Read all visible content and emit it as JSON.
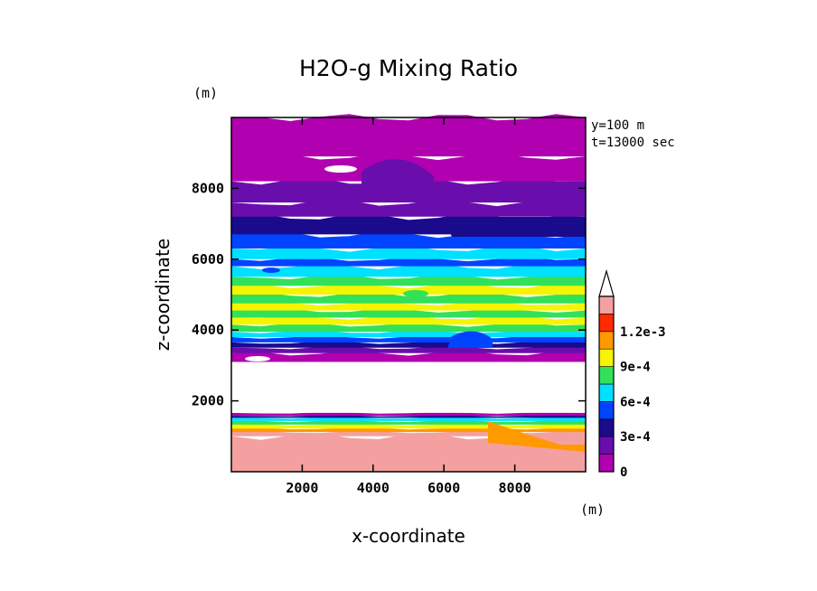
{
  "chart_data": {
    "type": "heatmap",
    "title": "H2O-g Mixing Ratio",
    "xlabel": "x-coordinate",
    "ylabel": "z-coordinate",
    "x_unit": "(m)",
    "y_unit": "(m)",
    "annotation_lines": [
      "y=100 m",
      "t=13000 sec"
    ],
    "xlim": [
      0,
      10000
    ],
    "ylim": [
      0,
      10000
    ],
    "xticks": [
      2000,
      4000,
      6000,
      8000
    ],
    "yticks": [
      2000,
      4000,
      6000,
      8000
    ],
    "xtick_labels": [
      "2000",
      "4000",
      "6000",
      "8000"
    ],
    "ytick_labels": [
      "2000",
      "4000",
      "6000",
      "8000"
    ],
    "colorbar": {
      "levels": [
        0,
        0.00015,
        0.0003,
        0.00045,
        0.0006,
        0.00075,
        0.0009,
        0.00105,
        0.0012
      ],
      "labels": [
        "0",
        "3e-4",
        "6e-4",
        "9e-4",
        "1.2e-3"
      ],
      "label_values": [
        0,
        0.0003,
        0.0006,
        0.0009,
        0.0012
      ],
      "colors": [
        "#b000b0",
        "#6a0dad",
        "#1a0a8c",
        "#0044ff",
        "#00e0ff",
        "#33e05a",
        "#f5f500",
        "#ff9900",
        "#ff2a00",
        "#f4a0a0"
      ],
      "extend": "max"
    },
    "layers": [
      {
        "z0": 0,
        "z1": 1000,
        "value": 0.0013
      },
      {
        "z0": 1000,
        "z1": 1120,
        "value": 0.00125
      },
      {
        "z0": 1120,
        "z1": 1220,
        "value": 0.0011
      },
      {
        "z0": 1220,
        "z1": 1330,
        "value": 0.00095
      },
      {
        "z0": 1330,
        "z1": 1430,
        "value": 0.0008
      },
      {
        "z0": 1430,
        "z1": 1520,
        "value": 0.00065
      },
      {
        "z0": 1520,
        "z1": 1580,
        "value": 0.0004
      },
      {
        "z0": 1580,
        "z1": 1660,
        "value": 0.0001
      },
      {
        "z0": 1660,
        "z1": 3100,
        "value": null
      },
      {
        "z0": 3100,
        "z1": 3350,
        "value": 0.0001
      },
      {
        "z0": 3350,
        "z1": 3500,
        "value": 0.0002
      },
      {
        "z0": 3500,
        "z1": 3650,
        "value": 0.0003
      },
      {
        "z0": 3650,
        "z1": 3800,
        "value": 0.0005
      },
      {
        "z0": 3800,
        "z1": 3950,
        "value": 0.00065
      },
      {
        "z0": 3950,
        "z1": 4150,
        "value": 0.0008
      },
      {
        "z0": 4150,
        "z1": 4350,
        "value": 0.00095
      },
      {
        "z0": 4350,
        "z1": 4550,
        "value": 0.0008
      },
      {
        "z0": 4550,
        "z1": 4750,
        "value": 0.00095
      },
      {
        "z0": 4750,
        "z1": 5000,
        "value": 0.0008
      },
      {
        "z0": 5000,
        "z1": 5250,
        "value": 0.00095
      },
      {
        "z0": 5250,
        "z1": 5500,
        "value": 0.0008
      },
      {
        "z0": 5500,
        "z1": 5800,
        "value": 0.00065
      },
      {
        "z0": 5800,
        "z1": 6000,
        "value": 0.0005
      },
      {
        "z0": 6000,
        "z1": 6300,
        "value": 0.0006
      },
      {
        "z0": 6300,
        "z1": 6700,
        "value": 0.0005
      },
      {
        "z0": 6700,
        "z1": 7200,
        "value": 0.00035
      },
      {
        "z0": 7200,
        "z1": 7600,
        "value": 0.00025
      },
      {
        "z0": 7600,
        "z1": 8200,
        "value": 0.0002
      },
      {
        "z0": 8200,
        "z1": 8900,
        "value": 0.0001
      },
      {
        "z0": 8900,
        "z1": 10000,
        "value": 5e-05
      }
    ]
  }
}
